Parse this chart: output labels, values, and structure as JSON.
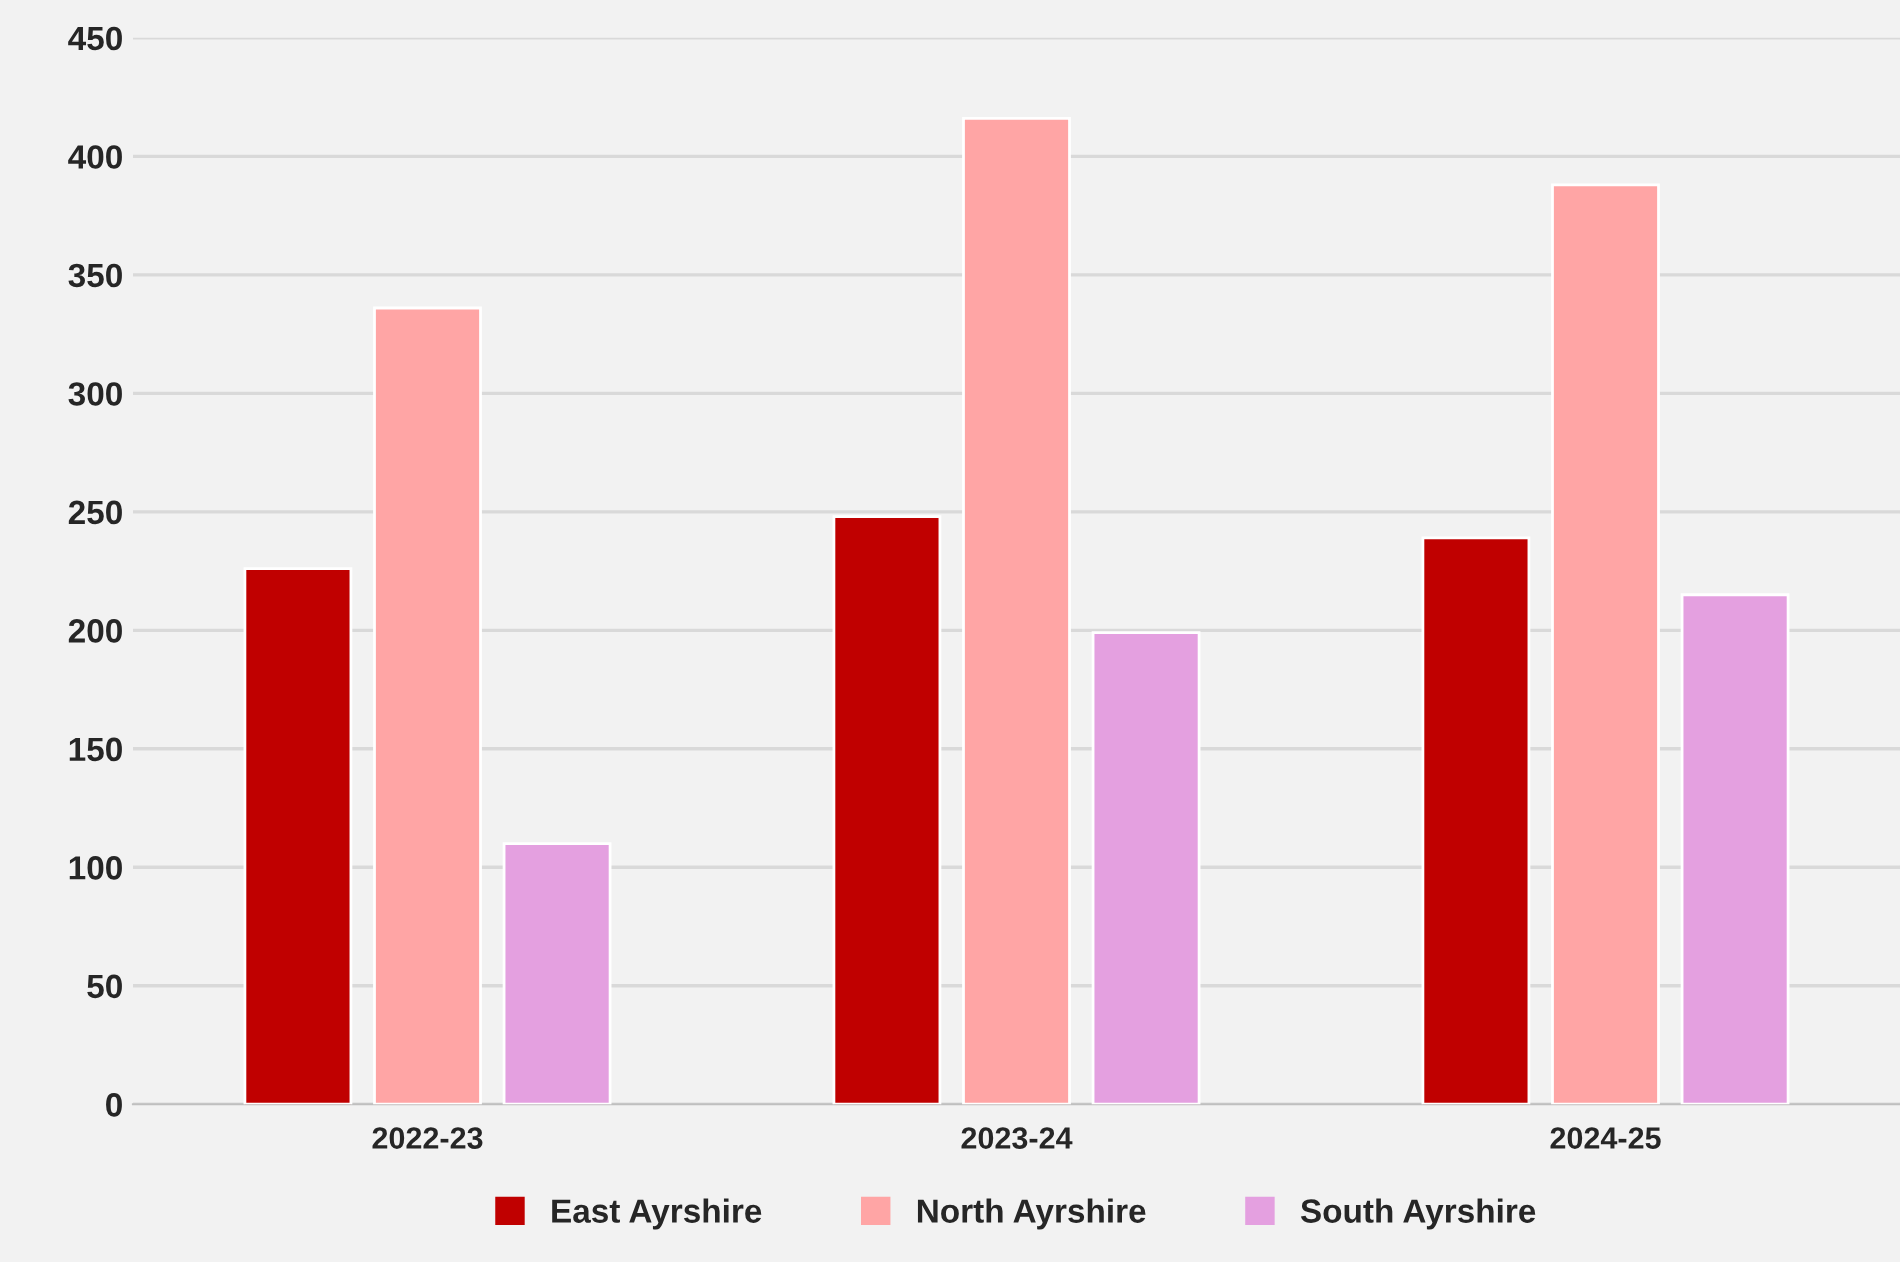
{
  "chart_data": {
    "type": "bar",
    "categories": [
      "2022-23",
      "2023-24",
      "2024-25"
    ],
    "series": [
      {
        "name": "East Ayrshire",
        "color": "#c00000",
        "values": [
          226,
          248,
          239
        ]
      },
      {
        "name": "North Ayrshire",
        "color": "#ffa5a5",
        "values": [
          336,
          416,
          388
        ]
      },
      {
        "name": "South Ayrshire",
        "color": "#e4a0e0",
        "values": [
          110,
          199,
          215
        ]
      }
    ],
    "ylim": [
      0,
      450
    ],
    "yticks": [
      0,
      50,
      100,
      150,
      200,
      250,
      300,
      350,
      400,
      450
    ],
    "grid": "y",
    "legend": "bottom"
  }
}
